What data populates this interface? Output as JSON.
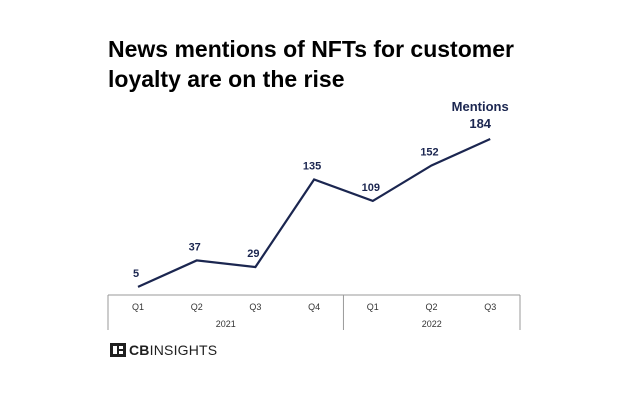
{
  "title": "News mentions of NFTs for customer loyalty are on the rise",
  "logo": {
    "brand_bold": "CB",
    "brand_rest": "INSIGHTS"
  },
  "colors": {
    "line": "#1b2650",
    "axis": "#999999",
    "tick_text": "#333333"
  },
  "chart_data": {
    "type": "line",
    "title": "News mentions of NFTs for customer loyalty are on the rise",
    "xlabel": "",
    "ylabel": "",
    "categories": [
      "Q1",
      "Q2",
      "Q3",
      "Q4",
      "Q1",
      "Q2",
      "Q3"
    ],
    "groups": [
      {
        "label": "2021",
        "categories": [
          "Q1",
          "Q2",
          "Q3",
          "Q4"
        ]
      },
      {
        "label": "2022",
        "categories": [
          "Q1",
          "Q2",
          "Q3"
        ]
      }
    ],
    "series": [
      {
        "name": "Mentions",
        "values": [
          5,
          37,
          29,
          135,
          109,
          152,
          184
        ]
      }
    ],
    "data_labels": [
      "5",
      "37",
      "29",
      "135",
      "109",
      "152",
      "184"
    ],
    "ylim": [
      0,
      184
    ],
    "grid": false,
    "legend": "none"
  }
}
